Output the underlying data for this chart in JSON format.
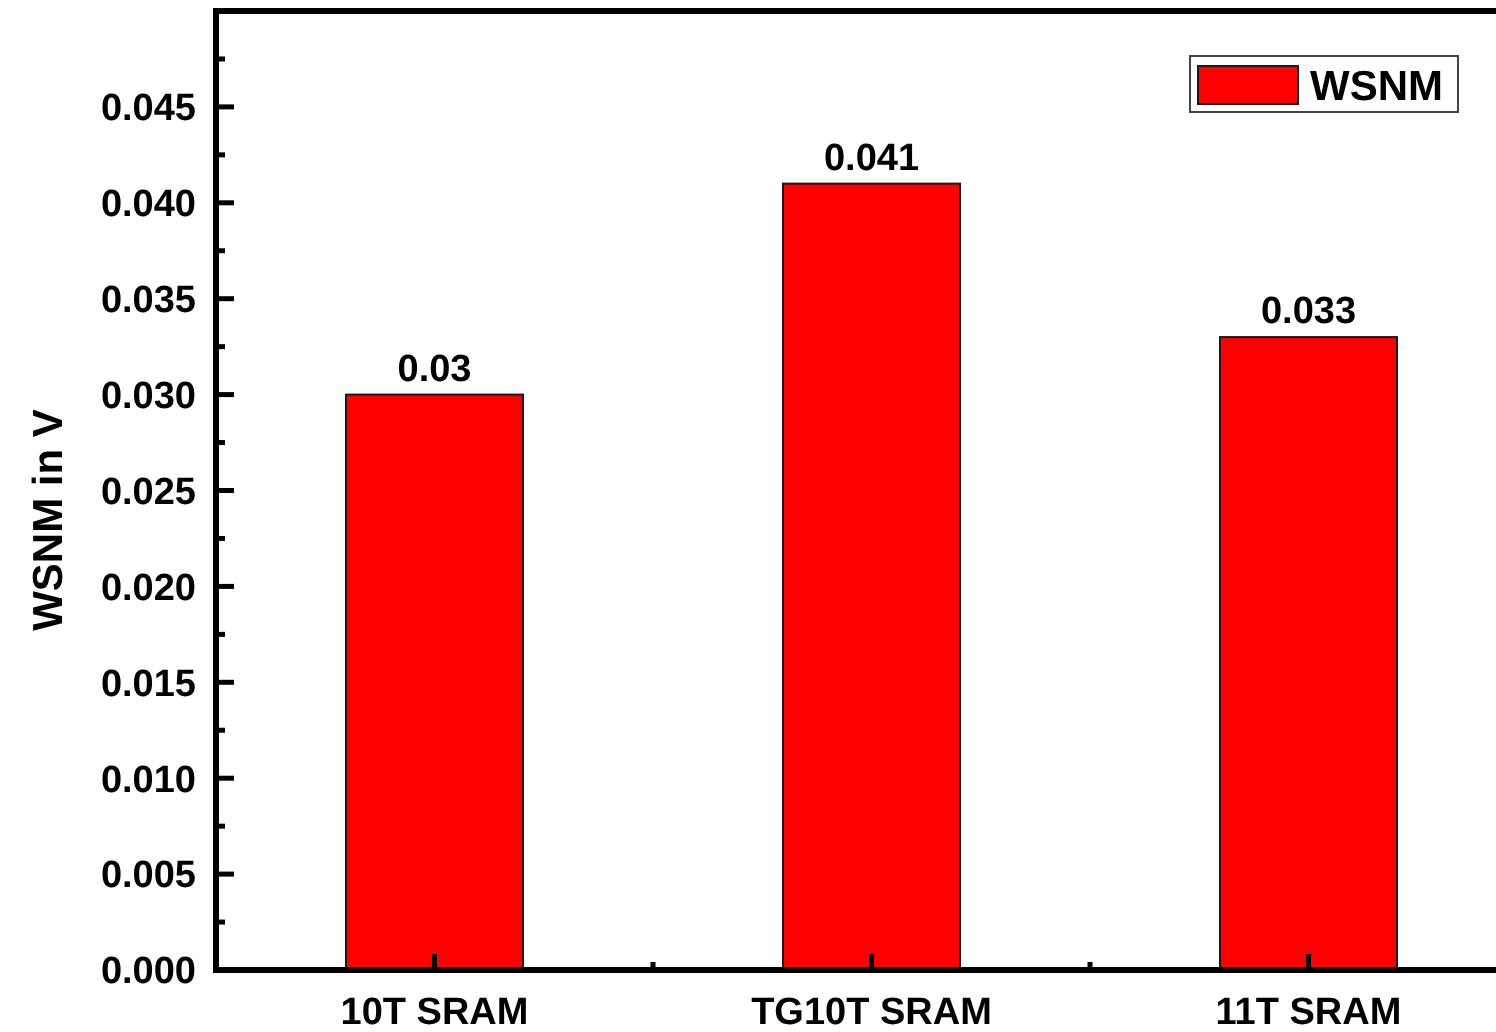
{
  "chart_data": {
    "type": "bar",
    "categories": [
      "10T SRAM",
      "TG10T SRAM",
      "11T SRAM"
    ],
    "series": [
      {
        "name": "WSNM",
        "color": "#ff0000",
        "values": [
          0.03,
          0.041,
          0.033
        ]
      }
    ],
    "ylabel": "WSNM in V",
    "ylim": [
      0,
      0.05
    ],
    "yticks": [
      {
        "value": 0,
        "label": "0.000"
      },
      {
        "value": 0.0025,
        "label": null
      },
      {
        "value": 0.005,
        "label": "0.005"
      },
      {
        "value": 0.0075,
        "label": null
      },
      {
        "value": 0.01,
        "label": "0.010"
      },
      {
        "value": 0.0125,
        "label": null
      },
      {
        "value": 0.015,
        "label": "0.015"
      },
      {
        "value": 0.0175,
        "label": null
      },
      {
        "value": 0.02,
        "label": "0.020"
      },
      {
        "value": 0.0225,
        "label": null
      },
      {
        "value": 0.025,
        "label": "0.025"
      },
      {
        "value": 0.0275,
        "label": null
      },
      {
        "value": 0.03,
        "label": "0.030"
      },
      {
        "value": 0.0325,
        "label": null
      },
      {
        "value": 0.035,
        "label": "0.035"
      },
      {
        "value": 0.0375,
        "label": null
      },
      {
        "value": 0.04,
        "label": "0.040"
      },
      {
        "value": 0.0425,
        "label": null
      },
      {
        "value": 0.045,
        "label": "0.045"
      },
      {
        "value": 0.0475,
        "label": null
      }
    ],
    "data_labels": true,
    "legend": "top right"
  }
}
